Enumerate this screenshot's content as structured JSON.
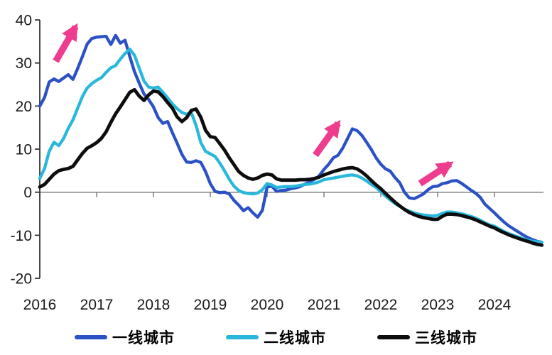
{
  "chart_data": {
    "type": "line",
    "x_start": "2016-01",
    "x_end": "2024-11",
    "x_frequency": "monthly",
    "x_tick_labels": [
      "2016",
      "2017",
      "2018",
      "2019",
      "2020",
      "2021",
      "2022",
      "2023",
      "2024"
    ],
    "y_ticks": [
      40,
      30,
      20,
      10,
      0,
      -10,
      -20
    ],
    "ylim": [
      -20,
      40
    ],
    "grid": "zero-line-only",
    "legend_position": "bottom",
    "axis_color": "#333333",
    "zero_line_color": "#808080",
    "tick_label_color": "#1a1a1a",
    "series": [
      {
        "name": "一线城市",
        "color": "#2B51C5",
        "width": 4.3,
        "values": [
          20.0,
          22.0,
          25.6,
          26.3,
          25.7,
          26.5,
          27.3,
          26.2,
          28.7,
          31.5,
          34.4,
          35.7,
          36.0,
          36.1,
          36.2,
          34.3,
          36.4,
          34.6,
          35.3,
          31.5,
          28.0,
          25.3,
          22.8,
          21.5,
          19.8,
          17.3,
          16.0,
          16.4,
          13.8,
          11.4,
          8.8,
          7.0,
          6.9,
          7.3,
          6.9,
          4.8,
          2.0,
          0.2,
          -0.1,
          0.0,
          -0.4,
          -1.9,
          -3.0,
          -4.3,
          -3.6,
          -4.8,
          -5.8,
          -4.2,
          1.2,
          1.4,
          0.2,
          0.4,
          0.5,
          0.8,
          1.0,
          1.3,
          1.9,
          2.4,
          3.0,
          3.8,
          5.3,
          6.5,
          8.0,
          8.6,
          10.3,
          12.5,
          14.7,
          14.3,
          13.2,
          11.6,
          9.9,
          8.0,
          6.5,
          5.4,
          4.9,
          3.4,
          2.2,
          0.0,
          -1.3,
          -1.5,
          -1.0,
          -0.4,
          0.6,
          1.3,
          1.4,
          2.0,
          2.2,
          2.6,
          2.7,
          2.1,
          1.3,
          0.5,
          -0.2,
          -1.2,
          -2.8,
          -3.8,
          -4.8,
          -5.9,
          -6.9,
          -7.8,
          -8.5,
          -9.2,
          -9.9,
          -10.5,
          -11.0,
          -11.4,
          -11.6
        ]
      },
      {
        "name": "二线城市",
        "color": "#29B7DB",
        "width": 4.3,
        "values": [
          3.2,
          5.5,
          9.5,
          11.6,
          10.8,
          12.4,
          14.8,
          16.8,
          19.5,
          22.2,
          24.2,
          25.2,
          26.0,
          26.6,
          27.8,
          28.9,
          29.4,
          30.9,
          32.2,
          33.2,
          31.8,
          28.8,
          25.8,
          24.4,
          24.2,
          24.4,
          23.2,
          21.9,
          20.5,
          19.4,
          18.5,
          18.1,
          18.5,
          15.5,
          11.5,
          9.5,
          8.9,
          8.3,
          6.8,
          5.0,
          3.0,
          1.4,
          0.4,
          -0.1,
          -0.3,
          -0.4,
          -0.2,
          0.6,
          2.0,
          1.7,
          1.1,
          1.2,
          1.3,
          1.3,
          1.4,
          1.6,
          1.8,
          1.9,
          2.1,
          2.4,
          2.9,
          3.1,
          3.3,
          3.5,
          3.7,
          3.9,
          4.0,
          3.8,
          3.3,
          2.6,
          1.8,
          1.1,
          0.1,
          -0.9,
          -1.8,
          -2.6,
          -3.3,
          -3.9,
          -4.4,
          -4.8,
          -5.1,
          -5.3,
          -5.4,
          -5.5,
          -5.4,
          -4.9,
          -4.6,
          -4.6,
          -4.8,
          -5.0,
          -5.3,
          -5.6,
          -6.0,
          -6.5,
          -7.1,
          -7.6,
          -7.9,
          -8.5,
          -9.1,
          -9.6,
          -10.0,
          -10.4,
          -10.8,
          -11.1,
          -11.4,
          -11.5,
          -11.6
        ]
      },
      {
        "name": "三线城市",
        "color": "#0D0D0D",
        "width": 4.8,
        "values": [
          1.2,
          1.8,
          3.0,
          4.2,
          5.0,
          5.3,
          5.5,
          6.0,
          7.5,
          9.0,
          10.2,
          10.8,
          11.5,
          12.5,
          14.0,
          16.2,
          18.2,
          19.8,
          21.5,
          23.2,
          23.8,
          22.3,
          21.3,
          22.6,
          23.5,
          23.3,
          22.2,
          20.8,
          19.5,
          17.5,
          16.4,
          17.3,
          19.0,
          19.3,
          17.4,
          14.4,
          12.9,
          12.7,
          11.3,
          9.8,
          8.0,
          6.4,
          4.8,
          3.9,
          3.3,
          3.0,
          3.3,
          3.9,
          4.2,
          4.0,
          3.1,
          2.8,
          2.8,
          2.8,
          2.8,
          2.9,
          2.9,
          3.0,
          3.2,
          3.5,
          4.0,
          4.4,
          4.8,
          5.1,
          5.4,
          5.6,
          5.7,
          5.4,
          4.7,
          3.8,
          2.7,
          1.7,
          0.8,
          -0.3,
          -1.3,
          -2.3,
          -3.2,
          -4.0,
          -4.7,
          -5.2,
          -5.6,
          -5.9,
          -6.1,
          -6.3,
          -6.3,
          -5.6,
          -5.1,
          -5.1,
          -5.2,
          -5.4,
          -5.7,
          -6.0,
          -6.4,
          -6.9,
          -7.4,
          -7.9,
          -8.3,
          -8.9,
          -9.4,
          -9.9,
          -10.3,
          -10.7,
          -11.1,
          -11.4,
          -11.8,
          -12.1,
          -12.3
        ]
      }
    ],
    "annotations": {
      "arrow_color": "#EE3D8F",
      "arrows": [
        {
          "x1": 2016.28,
          "y1": 30.4,
          "x2": 2016.63,
          "y2": 38.4
        },
        {
          "x1": 2020.85,
          "y1": 8.6,
          "x2": 2021.25,
          "y2": 16.0
        },
        {
          "x1": 2022.69,
          "y1": 2.0,
          "x2": 2023.22,
          "y2": 6.6
        }
      ]
    }
  }
}
